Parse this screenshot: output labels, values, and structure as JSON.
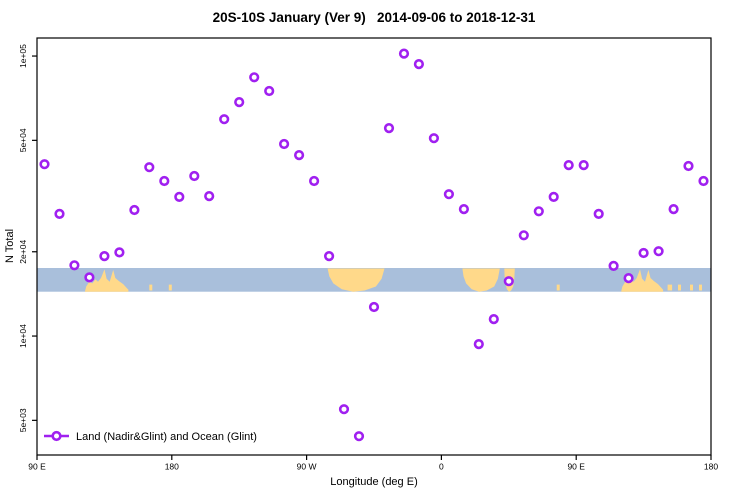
{
  "title": "20S-10S January (Ver 9)   2014-09-06 to 2018-12-31",
  "chart_data": {
    "type": "scatter",
    "title": "20S-10S January (Ver 9)   2014-09-06 to 2018-12-31",
    "xlabel": "Longitude (deg E)",
    "ylabel": "N Total",
    "grid": false,
    "x_axis": {
      "range": [
        90,
        540
      ],
      "ticks": [
        {
          "pos": 90,
          "label": "90 E"
        },
        {
          "pos": 180,
          "label": "180"
        },
        {
          "pos": 270,
          "label": "90 W"
        },
        {
          "pos": 360,
          "label": "0"
        },
        {
          "pos": 450,
          "label": "90 E"
        },
        {
          "pos": 540,
          "label": "180"
        }
      ]
    },
    "y_axis": {
      "scale": "log",
      "range": [
        3760,
        116000
      ],
      "ticks": [
        {
          "value": 100000,
          "label": "1e+05"
        },
        {
          "value": 50000,
          "label": "5e+04"
        },
        {
          "value": 20000,
          "label": "2e+04"
        },
        {
          "value": 10000,
          "label": "1e+04"
        },
        {
          "value": 5000,
          "label": "5e+03"
        }
      ]
    },
    "series": [
      {
        "name": "Land (Nadir&Glint) and Ocean (Glint)",
        "marker": "open-circle",
        "color": "#A020F0",
        "points": [
          [
            95,
            41100
          ],
          [
            105,
            27300
          ],
          [
            115,
            17900
          ],
          [
            125,
            16200
          ],
          [
            135,
            19300
          ],
          [
            145,
            19900
          ],
          [
            155,
            28200
          ],
          [
            165,
            40100
          ],
          [
            175,
            35800
          ],
          [
            185,
            31400
          ],
          [
            195,
            37300
          ],
          [
            205,
            31600
          ],
          [
            215,
            59500
          ],
          [
            225,
            68500
          ],
          [
            235,
            84000
          ],
          [
            245,
            75000
          ],
          [
            255,
            48500
          ],
          [
            265,
            44300
          ],
          [
            275,
            35800
          ],
          [
            285,
            19300
          ],
          [
            295,
            5480
          ],
          [
            305,
            4390
          ],
          [
            315,
            12700
          ],
          [
            325,
            55300
          ],
          [
            335,
            102000
          ],
          [
            345,
            93600
          ],
          [
            355,
            50900
          ],
          [
            365,
            32100
          ],
          [
            375,
            28400
          ],
          [
            385,
            9360
          ],
          [
            395,
            11500
          ],
          [
            405,
            15700
          ],
          [
            415,
            22900
          ],
          [
            425,
            27900
          ],
          [
            435,
            31400
          ],
          [
            445,
            40800
          ],
          [
            455,
            40800
          ],
          [
            465,
            27300
          ],
          [
            475,
            17800
          ],
          [
            485,
            16100
          ],
          [
            495,
            19800
          ],
          [
            505,
            20100
          ],
          [
            515,
            28400
          ],
          [
            525,
            40500
          ],
          [
            535,
            35800
          ]
        ]
      }
    ],
    "map_strip": {
      "ocean_color": "#A9BFDB",
      "land_color": "#FFD98A",
      "value_top": 17500,
      "value_bottom": 14400,
      "land_segments": [
        {
          "lon_from": 122,
          "lon_to": 151,
          "shape": "jagged",
          "name": "australia-pass1"
        },
        {
          "lon_from": 165,
          "lon_to": 167,
          "shape": "speck",
          "name": "island"
        },
        {
          "lon_from": 178,
          "lon_to": 180,
          "shape": "speck",
          "name": "island"
        },
        {
          "lon_from": 284,
          "lon_to": 322,
          "shape": "blob",
          "name": "south-america"
        },
        {
          "lon_from": 374,
          "lon_to": 399,
          "shape": "blob",
          "name": "africa"
        },
        {
          "lon_from": 402,
          "lon_to": 409,
          "shape": "blob",
          "name": "madagascar"
        },
        {
          "lon_from": 437,
          "lon_to": 439,
          "shape": "speck",
          "name": "island"
        },
        {
          "lon_from": 480,
          "lon_to": 508,
          "shape": "jagged",
          "name": "australia-pass2"
        },
        {
          "lon_from": 511,
          "lon_to": 514,
          "shape": "speck",
          "name": "island"
        },
        {
          "lon_from": 518,
          "lon_to": 520,
          "shape": "speck",
          "name": "island"
        },
        {
          "lon_from": 526,
          "lon_to": 528,
          "shape": "speck",
          "name": "island"
        },
        {
          "lon_from": 532,
          "lon_to": 534,
          "shape": "speck",
          "name": "island"
        }
      ]
    },
    "legend": {
      "label": "Land (Nadir&Glint) and Ocean (Glint)",
      "position": "bottom-left",
      "marker_color": "#A020F0"
    }
  },
  "colors": {
    "marker": "#A020F0",
    "ocean": "#A9BFDB",
    "land": "#FFD98A",
    "axis": "#000000"
  }
}
